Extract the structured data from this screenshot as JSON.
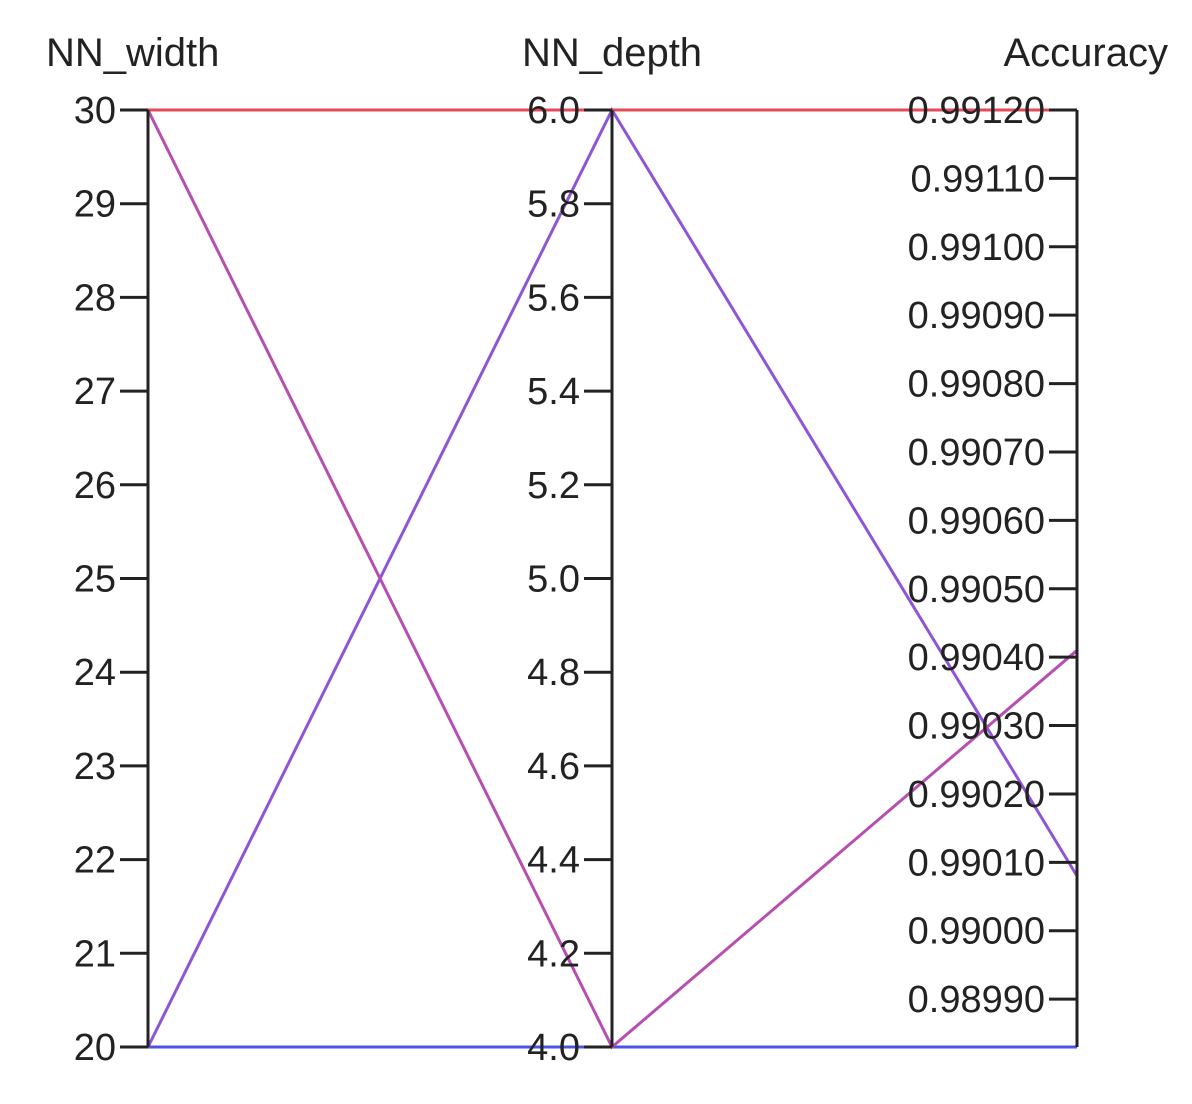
{
  "chart_data": {
    "type": "parallel_coordinates",
    "axes": [
      {
        "name": "NN_width",
        "range": [
          20,
          30
        ],
        "ticks": [
          "20",
          "21",
          "22",
          "23",
          "24",
          "25",
          "26",
          "27",
          "28",
          "29",
          "30"
        ]
      },
      {
        "name": "NN_depth",
        "range": [
          4.0,
          6.0
        ],
        "ticks": [
          "4.0",
          "4.2",
          "4.4",
          "4.6",
          "4.8",
          "5.0",
          "5.2",
          "5.4",
          "5.6",
          "5.8",
          "6.0"
        ]
      },
      {
        "name": "Accuracy",
        "range": [
          0.98983,
          0.9912
        ],
        "ticks": [
          "0.98990",
          "0.99000",
          "0.99010",
          "0.99020",
          "0.99030",
          "0.99040",
          "0.99050",
          "0.99060",
          "0.99070",
          "0.99080",
          "0.99090",
          "0.99100",
          "0.99110",
          "0.99120"
        ]
      }
    ],
    "series": [
      {
        "values": [
          20,
          4.0,
          0.98983
        ],
        "color": "#4a55e3"
      },
      {
        "values": [
          20,
          6.0,
          0.99008
        ],
        "color": "#8e55d6"
      },
      {
        "values": [
          30,
          4.0,
          0.99041
        ],
        "color": "#b64fb0"
      },
      {
        "values": [
          30,
          6.0,
          0.9912
        ],
        "color": "#e34a5a"
      }
    ]
  }
}
